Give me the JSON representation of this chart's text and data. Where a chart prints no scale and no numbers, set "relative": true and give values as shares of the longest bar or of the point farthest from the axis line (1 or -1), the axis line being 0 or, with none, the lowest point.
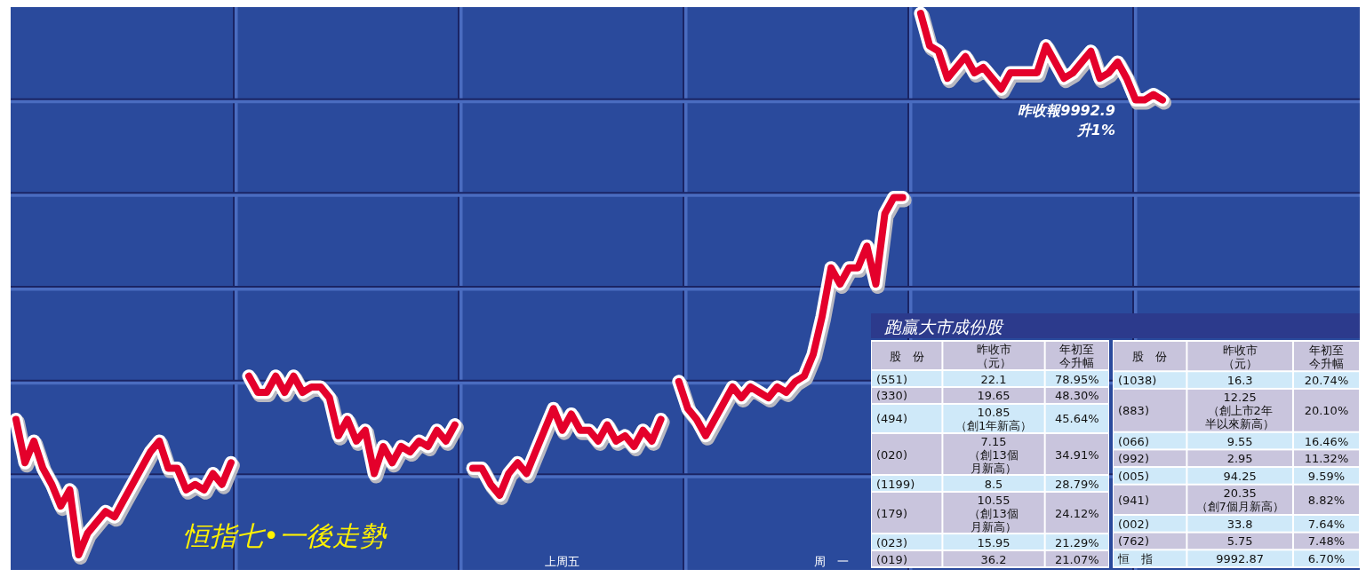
{
  "chart_data": [
    {
      "type": "line",
      "title": "恒指七•一後走勢",
      "relative": true,
      "grid": true,
      "color": "#e4002b",
      "categories": [
        null,
        null,
        null,
        null,
        null,
        null,
        null,
        null,
        null,
        null,
        null,
        null,
        null,
        null,
        null,
        null,
        null,
        null,
        null,
        null,
        null,
        null,
        null,
        null,
        null,
        null,
        null,
        null,
        null,
        null,
        null,
        null,
        null,
        null,
        null,
        null,
        null,
        null,
        null,
        null,
        null,
        null,
        null,
        null,
        null,
        null,
        null,
        null,
        null,
        null,
        null,
        null,
        null,
        null,
        null,
        null,
        null,
        null,
        null,
        null,
        null,
        "上周五",
        null,
        null,
        null,
        null,
        null,
        null,
        null,
        null,
        null,
        null,
        null,
        null,
        null,
        null,
        null,
        null,
        null,
        null,
        null,
        null,
        null,
        null,
        null,
        null,
        null,
        null,
        null,
        null,
        null,
        "周　一",
        null,
        null,
        null,
        null,
        null,
        null,
        null,
        null,
        null,
        null,
        null,
        null,
        null,
        null,
        null,
        null,
        null,
        null,
        null,
        null,
        null,
        null,
        null,
        null,
        null,
        null,
        null,
        null,
        null,
        null,
        null,
        null,
        null,
        null,
        null,
        null,
        null
      ],
      "values": [
        0.25,
        0.17,
        0.21,
        0.16,
        0.13,
        0.09,
        0.12,
        0,
        0.04,
        0.06,
        0.08,
        0.07,
        0.1,
        0.13,
        0.16,
        0.19,
        0.21,
        0.16,
        0.16,
        0.12,
        0.13,
        0.12,
        0.15,
        0.13,
        0.17,
        null,
        0.33,
        0.3,
        0.3,
        0.33,
        0.3,
        0.33,
        0.3,
        0.31,
        0.31,
        0.29,
        0.22,
        0.25,
        0.21,
        0.23,
        0.15,
        0.2,
        0.17,
        0.2,
        0.19,
        0.21,
        0.2,
        0.23,
        0.21,
        0.24,
        null,
        0.16,
        0.16,
        0.13,
        0.11,
        0.15,
        0.17,
        0.15,
        0.19,
        0.23,
        0.27,
        0.23,
        0.26,
        0.23,
        0.23,
        0.21,
        0.24,
        0.21,
        0.22,
        0.2,
        0.23,
        0.21,
        0.25,
        null,
        0.32,
        0.27,
        0.25,
        0.22,
        0.25,
        0.28,
        0.31,
        0.29,
        0.31,
        0.3,
        0.29,
        0.31,
        0.3,
        0.32,
        0.33,
        0.37,
        0.44,
        0.53,
        0.5,
        0.53,
        0.53,
        0.57,
        0.5,
        0.63,
        0.66,
        0.66,
        null,
        1,
        0.94,
        0.93,
        0.88,
        0.9,
        0.92,
        0.89,
        0.9,
        0.88,
        0.86,
        0.89,
        0.89,
        0.89,
        0.89,
        0.94,
        0.91,
        0.88,
        0.89,
        0.91,
        0.93,
        0.88,
        0.89,
        0.91,
        0.88,
        0.84,
        0.84,
        0.85,
        0.84
      ],
      "annotations": [
        "昨收報9992.9",
        "升1%"
      ]
    },
    {
      "type": "other",
      "title": "跑贏大市成份股",
      "categories": [
        "股　份",
        "昨收市（元）",
        "年初至今升幅"
      ],
      "y_categories": [
        "(551)",
        "(330)",
        "(494)",
        "(020)",
        "(1199)",
        "(179)",
        "(023)",
        "(019)"
      ],
      "cell_labels": [
        [
          "22.1",
          "78.95%"
        ],
        [
          "19.65",
          "48.30%"
        ],
        [
          "10.85（創1年新高）",
          "45.64%"
        ],
        [
          "7.15（創13個月新高）",
          "34.91%"
        ],
        [
          "8.5",
          "28.79%"
        ],
        [
          "10.55（創13個月新高）",
          "24.12%"
        ],
        [
          "15.95",
          "21.29%"
        ],
        [
          "36.2",
          "21.07%"
        ]
      ]
    },
    {
      "type": "other",
      "categories": [
        "股　份",
        "昨收市（元）",
        "年初至今升幅"
      ],
      "y_categories": [
        "(1038)",
        "(883)",
        "(066)",
        "(992)",
        "(005)",
        "(941)",
        "(002)",
        "(762)",
        "恒　指"
      ],
      "cell_labels": [
        [
          "16.3",
          "20.74%"
        ],
        [
          "12.25（創上市2年半以來新高）",
          "20.10%"
        ],
        [
          "9.55",
          "16.46%"
        ],
        [
          "2.95",
          "11.32%"
        ],
        [
          "94.25",
          "9.59%"
        ],
        [
          "20.35（創7個月新高）",
          "8.82%"
        ],
        [
          "33.8",
          "7.64%"
        ],
        [
          "5.75",
          "7.48%"
        ],
        [
          "9992.87",
          "6.70%"
        ]
      ]
    }
  ]
}
